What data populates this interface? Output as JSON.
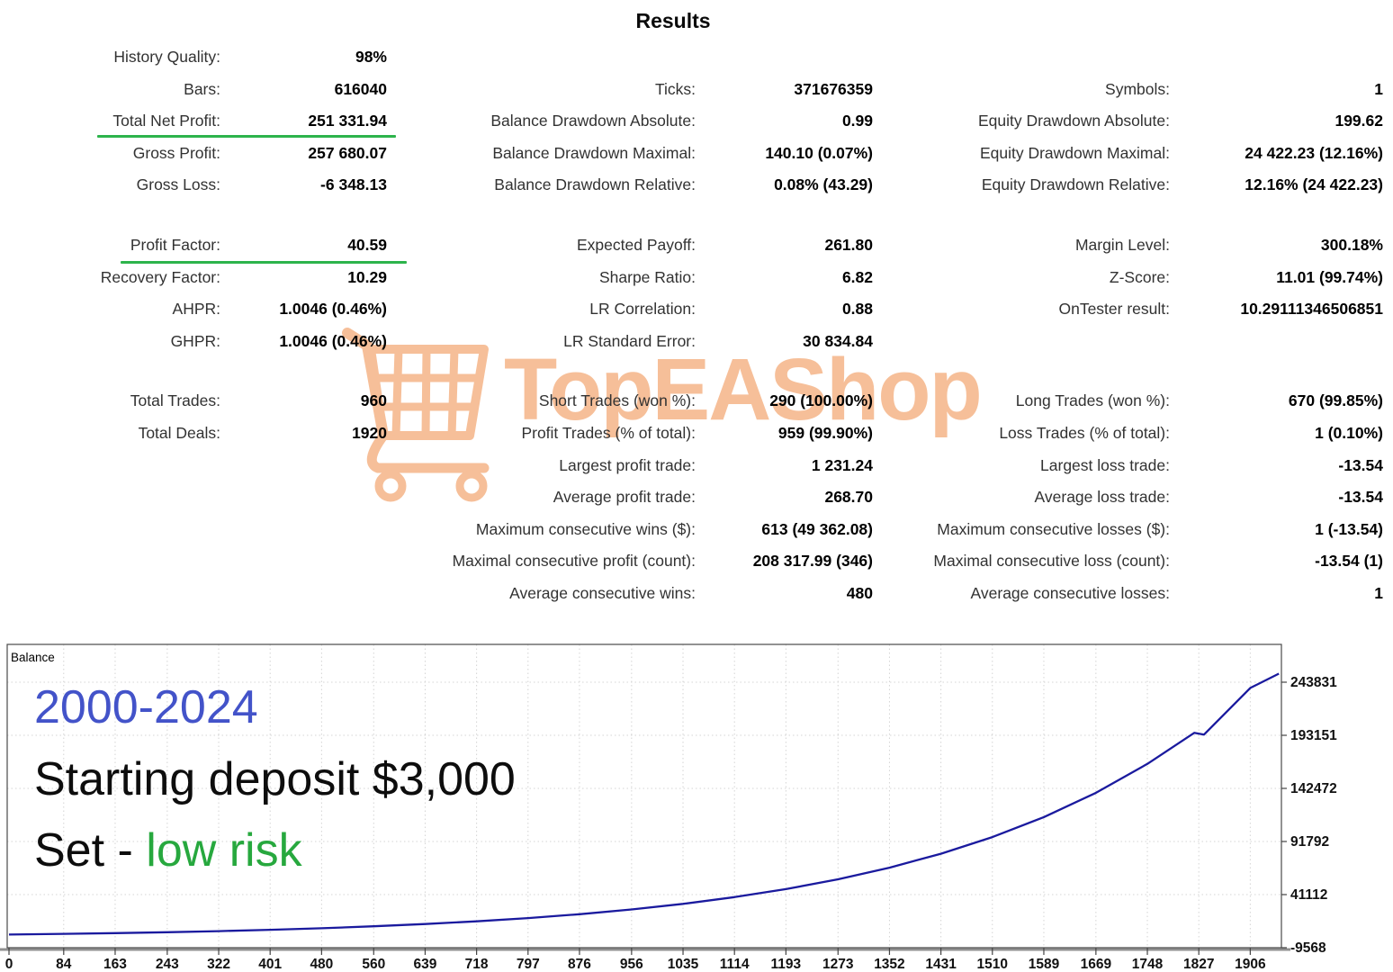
{
  "title": "Results",
  "colors": {
    "accent_green": "#2db44c",
    "watermark_orange": "#f6bd95",
    "period_blue": "#4353c9",
    "risk_green": "#27a83e",
    "curve_blue": "#1a1a9e",
    "grid_gray": "#d4d4d4",
    "frame_gray": "#4a4a4a",
    "axis_line_gray": "#909090",
    "label_color": "#323232",
    "value_color": "#000000"
  },
  "watermark": {
    "text": "TopEAShop",
    "icon": "shopping-cart-icon"
  },
  "stats": {
    "sections": [
      {
        "rows": [
          {
            "l1": "History Quality:",
            "v1": "98%",
            "l2": "",
            "v2": "",
            "l3": "",
            "v3": ""
          },
          {
            "l1": "Bars:",
            "v1": "616040",
            "l2": "Ticks:",
            "v2": "371676359",
            "l3": "Symbols:",
            "v3": "1"
          },
          {
            "l1": "Total Net Profit:",
            "v1": "251 331.94",
            "l2": "Balance Drawdown Absolute:",
            "v2": "0.99",
            "l3": "Equity Drawdown Absolute:",
            "v3": "199.62",
            "underline": true
          },
          {
            "l1": "Gross Profit:",
            "v1": "257 680.07",
            "l2": "Balance Drawdown Maximal:",
            "v2": "140.10 (0.07%)",
            "l3": "Equity Drawdown Maximal:",
            "v3": "24 422.23 (12.16%)"
          },
          {
            "l1": "Gross Loss:",
            "v1": "-6 348.13",
            "l2": "Balance Drawdown Relative:",
            "v2": "0.08% (43.29)",
            "l3": "Equity Drawdown Relative:",
            "v3": "12.16% (24 422.23)"
          }
        ]
      },
      {
        "rows": [
          {
            "l1": "Profit Factor:",
            "v1": "40.59",
            "l2": "Expected Payoff:",
            "v2": "261.80",
            "l3": "Margin Level:",
            "v3": "300.18%",
            "underline": true
          },
          {
            "l1": "Recovery Factor:",
            "v1": "10.29",
            "l2": "Sharpe Ratio:",
            "v2": "6.82",
            "l3": "Z-Score:",
            "v3": "11.01 (99.74%)"
          },
          {
            "l1": "AHPR:",
            "v1": "1.0046 (0.46%)",
            "l2": "LR Correlation:",
            "v2": "0.88",
            "l3": "OnTester result:",
            "v3": "10.29111346506851"
          },
          {
            "l1": "GHPR:",
            "v1": "1.0046 (0.46%)",
            "l2": "LR Standard Error:",
            "v2": "30 834.84",
            "l3": "",
            "v3": ""
          }
        ]
      },
      {
        "rows": [
          {
            "l1": "Total Trades:",
            "v1": "960",
            "l2": "Short Trades (won %):",
            "v2": "290 (100.00%)",
            "l3": "Long Trades (won %):",
            "v3": "670 (99.85%)"
          },
          {
            "l1": "Total Deals:",
            "v1": "1920",
            "l2": "Profit Trades (% of total):",
            "v2": "959 (99.90%)",
            "l3": "Loss Trades (% of total):",
            "v3": "1 (0.10%)"
          },
          {
            "l1": "",
            "v1": "",
            "l2": "Largest profit trade:",
            "v2": "1 231.24",
            "l3": "Largest loss trade:",
            "v3": "-13.54"
          },
          {
            "l1": "",
            "v1": "",
            "l2": "Average profit trade:",
            "v2": "268.70",
            "l3": "Average loss trade:",
            "v3": "-13.54"
          },
          {
            "l1": "",
            "v1": "",
            "l2": "Maximum consecutive wins ($):",
            "v2": "613 (49 362.08)",
            "l3": "Maximum consecutive losses ($):",
            "v3": "1 (-13.54)"
          },
          {
            "l1": "",
            "v1": "",
            "l2": "Maximal consecutive profit (count):",
            "v2": "208 317.99 (346)",
            "l3": "Maximal consecutive loss (count):",
            "v3": "-13.54 (1)"
          },
          {
            "l1": "",
            "v1": "",
            "l2": "Average consecutive wins:",
            "v2": "480",
            "l3": "Average consecutive losses:",
            "v3": "1"
          }
        ]
      }
    ]
  },
  "chart_data": {
    "type": "line",
    "series_label": "Balance",
    "annotations": {
      "period": "2000-2024",
      "deposit": "Starting deposit $3,000",
      "set_prefix": "Set - ",
      "set_value": "low risk"
    },
    "x_ticks": [
      0,
      84,
      163,
      243,
      322,
      401,
      480,
      560,
      639,
      718,
      797,
      876,
      956,
      1035,
      1114,
      1193,
      1273,
      1352,
      1431,
      1510,
      1589,
      1669,
      1748,
      1827,
      1906
    ],
    "y_ticks": [
      243831,
      193151,
      142472,
      91792,
      41112,
      -9568
    ],
    "xlim": [
      0,
      1955
    ],
    "ylim": [
      -9568,
      243831
    ],
    "grid": true,
    "legend_position": "none",
    "series": [
      {
        "name": "Balance",
        "points": [
          [
            0,
            3000
          ],
          [
            84,
            3640
          ],
          [
            163,
            4360
          ],
          [
            243,
            5240
          ],
          [
            322,
            6280
          ],
          [
            401,
            7530
          ],
          [
            480,
            9020
          ],
          [
            560,
            10840
          ],
          [
            639,
            13000
          ],
          [
            718,
            15590
          ],
          [
            797,
            18690
          ],
          [
            876,
            22400
          ],
          [
            956,
            26900
          ],
          [
            1035,
            32270
          ],
          [
            1114,
            38680
          ],
          [
            1193,
            46380
          ],
          [
            1273,
            55700
          ],
          [
            1352,
            66800
          ],
          [
            1431,
            80100
          ],
          [
            1510,
            96000
          ],
          [
            1589,
            115100
          ],
          [
            1669,
            138300
          ],
          [
            1748,
            165800
          ],
          [
            1820,
            195500
          ],
          [
            1835,
            193800
          ],
          [
            1906,
            238300
          ],
          [
            1950,
            252000
          ]
        ]
      }
    ]
  }
}
